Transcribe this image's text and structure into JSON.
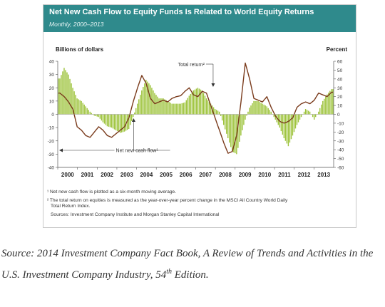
{
  "header": {
    "title": "Net New Cash Flow to Equity Funds Is Related to World Equity Returns",
    "subtitle": "Monthly, 2000–2013"
  },
  "notes": {
    "note1": "¹ Net new cash flow is plotted as a six-month moving average.",
    "note2_line1": "² The total return on equities is measured as the year-over-year percent change in the MSCI All Country World Daily",
    "note2_line2": "Total Return Index.",
    "sources": "Sources: Investment Company Institute and Morgan Stanley Capital International"
  },
  "caption": {
    "prefix": "Source: 2014 Investment Company Fact Book, A Review of Trends and Activities in the U.S. Investment Company Industry, 54",
    "superscript": "th",
    "suffix": " Edition."
  },
  "colors": {
    "bars": "#9dc33b",
    "line": "#7a3b1c",
    "title_bar": "#2f8a8c",
    "axis": "#555555"
  },
  "chart_data": {
    "type": "bar",
    "left_axis_label": "Billions of dollars",
    "right_axis_label": "Percent",
    "left_ylim": [
      -40,
      40
    ],
    "left_ticks": [
      40,
      30,
      20,
      10,
      0,
      -10,
      -20,
      -30,
      -40
    ],
    "right_ylim": [
      -60,
      60
    ],
    "right_ticks": [
      60,
      50,
      40,
      30,
      20,
      10,
      0,
      -10,
      -20,
      -30,
      -40,
      -50,
      -60
    ],
    "x_tick_labels": [
      "2000",
      "2001",
      "2002",
      "2003",
      "2004",
      "2005",
      "2006",
      "2007",
      "2008",
      "2009",
      "2010",
      "2011",
      "2012",
      "2013"
    ],
    "annotations": [
      {
        "text": "Total return²",
        "series": "total_return"
      },
      {
        "text": "Net new cash flow¹",
        "series": "net_new_cash_flow"
      }
    ],
    "series": [
      {
        "key": "net_new_cash_flow",
        "axis": "left",
        "mark": "bar",
        "quarterly_values": [
          27,
          35,
          30,
          20,
          12,
          10,
          6,
          2,
          -1,
          -2,
          -6,
          -9,
          -10,
          -12,
          -14,
          -13,
          -11,
          -2,
          8,
          18,
          26,
          22,
          16,
          12,
          12,
          10,
          8,
          8,
          8,
          9,
          14,
          18,
          20,
          18,
          12,
          8,
          4,
          2,
          -8,
          -18,
          -28,
          -30,
          -16,
          -4,
          5,
          10,
          10,
          8,
          6,
          2,
          -4,
          -10,
          -18,
          -24,
          -16,
          -8,
          -2,
          4,
          2,
          -4,
          2,
          10,
          15,
          19
        ]
      },
      {
        "key": "total_return",
        "axis": "right",
        "mark": "line",
        "quarterly_values": [
          24,
          20,
          14,
          6,
          -14,
          -18,
          -24,
          -26,
          -20,
          -14,
          -18,
          -24,
          -26,
          -22,
          -18,
          -14,
          -4,
          14,
          30,
          44,
          35,
          18,
          12,
          14,
          16,
          14,
          18,
          20,
          21,
          26,
          30,
          22,
          20,
          26,
          24,
          10,
          -4,
          -18,
          -32,
          -44,
          -42,
          -24,
          14,
          58,
          40,
          18,
          16,
          14,
          20,
          8,
          -2,
          -8,
          -10,
          -8,
          -4,
          8,
          12,
          14,
          12,
          16,
          24,
          22,
          20,
          25
        ]
      }
    ]
  }
}
